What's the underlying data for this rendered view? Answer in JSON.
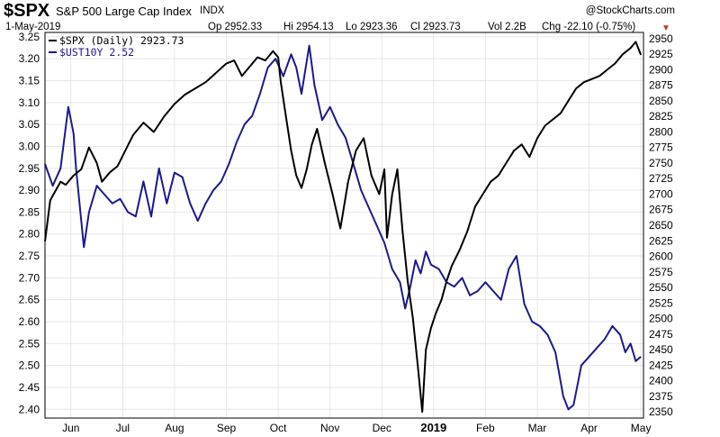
{
  "header": {
    "symbol": "$SPX",
    "title": "S&P 500 Large Cap Index",
    "exchange": "INDX",
    "date": "1-May-2019",
    "open": "Op 2952.33",
    "high": "Hi 2954.13",
    "low": "Lo 2923.36",
    "close": "Cl 2923.73",
    "volume": "Vol 2.2B",
    "change": "Chg -22.10 (-0.75%)",
    "watermark": "@StockCharts.com"
  },
  "colors": {
    "spx": "#000000",
    "ust": "#1a1a8c",
    "down_arrow": "#c0392b",
    "grid": "#e6e6e6",
    "frame": "#000000"
  },
  "chart_data": {
    "type": "line",
    "legend": [
      {
        "text": "$SPX (Daily) 2923.73",
        "color": "#000000"
      },
      {
        "text": "$UST10Y 2.52",
        "color": "#1a1a8c"
      }
    ],
    "legend_placement": "top-left",
    "left_axis": {
      "label": "",
      "ylim": [
        2.38,
        3.26
      ],
      "ticks": [
        2.4,
        2.45,
        2.5,
        2.55,
        2.6,
        2.65,
        2.7,
        2.75,
        2.8,
        2.85,
        2.9,
        2.95,
        3.0,
        3.05,
        3.1,
        3.15,
        3.2,
        3.25
      ]
    },
    "right_axis": {
      "label": "",
      "ylim": [
        2340,
        2960
      ],
      "ticks": [
        2350,
        2375,
        2400,
        2425,
        2450,
        2475,
        2500,
        2525,
        2550,
        2575,
        2600,
        2625,
        2650,
        2675,
        2700,
        2725,
        2750,
        2775,
        2800,
        2825,
        2850,
        2875,
        2900,
        2925,
        2950
      ]
    },
    "x_labels": [
      {
        "text": "Jun",
        "t": 0.5
      },
      {
        "text": "Jul",
        "t": 1.5
      },
      {
        "text": "Aug",
        "t": 2.5
      },
      {
        "text": "Sep",
        "t": 3.5
      },
      {
        "text": "Oct",
        "t": 4.5
      },
      {
        "text": "Nov",
        "t": 5.5
      },
      {
        "text": "Dec",
        "t": 6.5
      },
      {
        "text": "2019",
        "t": 7.5,
        "bold": true
      },
      {
        "text": "Feb",
        "t": 8.5
      },
      {
        "text": "Mar",
        "t": 9.5
      },
      {
        "text": "Apr",
        "t": 10.5
      },
      {
        "text": "May",
        "t": 11.5
      }
    ],
    "x_range": [
      0.0,
      11.55
    ],
    "grid": true,
    "series": [
      {
        "name": "$SPX (Daily)",
        "axis": "right",
        "points": [
          [
            0.0,
            2624
          ],
          [
            0.1,
            2690
          ],
          [
            0.2,
            2705
          ],
          [
            0.3,
            2720
          ],
          [
            0.4,
            2715
          ],
          [
            0.55,
            2730
          ],
          [
            0.7,
            2740
          ],
          [
            0.85,
            2775
          ],
          [
            1.0,
            2750
          ],
          [
            1.1,
            2720
          ],
          [
            1.25,
            2735
          ],
          [
            1.4,
            2745
          ],
          [
            1.55,
            2770
          ],
          [
            1.7,
            2795
          ],
          [
            1.9,
            2815
          ],
          [
            2.1,
            2800
          ],
          [
            2.3,
            2825
          ],
          [
            2.5,
            2845
          ],
          [
            2.7,
            2860
          ],
          [
            2.9,
            2870
          ],
          [
            3.1,
            2880
          ],
          [
            3.3,
            2895
          ],
          [
            3.5,
            2910
          ],
          [
            3.65,
            2915
          ],
          [
            3.8,
            2890
          ],
          [
            3.95,
            2905
          ],
          [
            4.1,
            2920
          ],
          [
            4.25,
            2915
          ],
          [
            4.4,
            2930
          ],
          [
            4.5,
            2920
          ],
          [
            4.55,
            2880
          ],
          [
            4.65,
            2825
          ],
          [
            4.75,
            2770
          ],
          [
            4.85,
            2730
          ],
          [
            4.95,
            2710
          ],
          [
            5.05,
            2740
          ],
          [
            5.15,
            2780
          ],
          [
            5.25,
            2805
          ],
          [
            5.4,
            2750
          ],
          [
            5.55,
            2700
          ],
          [
            5.7,
            2645
          ],
          [
            5.85,
            2720
          ],
          [
            6.0,
            2770
          ],
          [
            6.15,
            2790
          ],
          [
            6.3,
            2730
          ],
          [
            6.45,
            2700
          ],
          [
            6.55,
            2740
          ],
          [
            6.6,
            2630
          ],
          [
            6.7,
            2700
          ],
          [
            6.8,
            2740
          ],
          [
            6.9,
            2640
          ],
          [
            7.0,
            2560
          ],
          [
            7.1,
            2500
          ],
          [
            7.2,
            2420
          ],
          [
            7.28,
            2350
          ],
          [
            7.35,
            2450
          ],
          [
            7.45,
            2485
          ],
          [
            7.55,
            2510
          ],
          [
            7.65,
            2530
          ],
          [
            7.75,
            2560
          ],
          [
            7.85,
            2585
          ],
          [
            8.0,
            2610
          ],
          [
            8.15,
            2640
          ],
          [
            8.3,
            2680
          ],
          [
            8.45,
            2700
          ],
          [
            8.6,
            2720
          ],
          [
            8.75,
            2730
          ],
          [
            8.9,
            2750
          ],
          [
            9.05,
            2770
          ],
          [
            9.2,
            2780
          ],
          [
            9.35,
            2760
          ],
          [
            9.5,
            2790
          ],
          [
            9.65,
            2810
          ],
          [
            9.8,
            2820
          ],
          [
            9.95,
            2830
          ],
          [
            10.1,
            2850
          ],
          [
            10.25,
            2870
          ],
          [
            10.4,
            2880
          ],
          [
            10.55,
            2885
          ],
          [
            10.7,
            2890
          ],
          [
            10.85,
            2900
          ],
          [
            11.0,
            2910
          ],
          [
            11.15,
            2925
          ],
          [
            11.3,
            2935
          ],
          [
            11.4,
            2945
          ],
          [
            11.5,
            2924
          ]
        ]
      },
      {
        "name": "$UST10Y",
        "axis": "left",
        "points": [
          [
            0.0,
            2.96
          ],
          [
            0.15,
            2.91
          ],
          [
            0.3,
            2.95
          ],
          [
            0.45,
            3.09
          ],
          [
            0.55,
            3.03
          ],
          [
            0.6,
            2.95
          ],
          [
            0.75,
            2.77
          ],
          [
            0.85,
            2.85
          ],
          [
            1.0,
            2.91
          ],
          [
            1.15,
            2.89
          ],
          [
            1.3,
            2.87
          ],
          [
            1.45,
            2.88
          ],
          [
            1.6,
            2.85
          ],
          [
            1.75,
            2.84
          ],
          [
            1.9,
            2.92
          ],
          [
            2.05,
            2.84
          ],
          [
            2.2,
            2.95
          ],
          [
            2.35,
            2.87
          ],
          [
            2.5,
            2.94
          ],
          [
            2.65,
            2.93
          ],
          [
            2.8,
            2.87
          ],
          [
            2.95,
            2.83
          ],
          [
            3.1,
            2.87
          ],
          [
            3.25,
            2.9
          ],
          [
            3.4,
            2.92
          ],
          [
            3.55,
            2.96
          ],
          [
            3.7,
            3.01
          ],
          [
            3.85,
            3.05
          ],
          [
            4.0,
            3.07
          ],
          [
            4.15,
            3.12
          ],
          [
            4.3,
            3.18
          ],
          [
            4.45,
            3.2
          ],
          [
            4.6,
            3.16
          ],
          [
            4.75,
            3.21
          ],
          [
            4.85,
            3.18
          ],
          [
            4.95,
            3.12
          ],
          [
            5.1,
            3.23
          ],
          [
            5.2,
            3.14
          ],
          [
            5.35,
            3.06
          ],
          [
            5.5,
            3.09
          ],
          [
            5.65,
            3.05
          ],
          [
            5.8,
            3.02
          ],
          [
            5.95,
            2.96
          ],
          [
            6.1,
            2.9
          ],
          [
            6.25,
            2.86
          ],
          [
            6.4,
            2.82
          ],
          [
            6.55,
            2.78
          ],
          [
            6.7,
            2.72
          ],
          [
            6.85,
            2.69
          ],
          [
            6.95,
            2.63
          ],
          [
            7.05,
            2.68
          ],
          [
            7.15,
            2.74
          ],
          [
            7.25,
            2.71
          ],
          [
            7.35,
            2.76
          ],
          [
            7.45,
            2.73
          ],
          [
            7.6,
            2.72
          ],
          [
            7.75,
            2.69
          ],
          [
            7.9,
            2.68
          ],
          [
            8.05,
            2.7
          ],
          [
            8.2,
            2.66
          ],
          [
            8.35,
            2.67
          ],
          [
            8.5,
            2.69
          ],
          [
            8.65,
            2.67
          ],
          [
            8.8,
            2.65
          ],
          [
            8.95,
            2.72
          ],
          [
            9.1,
            2.75
          ],
          [
            9.25,
            2.64
          ],
          [
            9.4,
            2.6
          ],
          [
            9.55,
            2.59
          ],
          [
            9.7,
            2.57
          ],
          [
            9.85,
            2.53
          ],
          [
            10.0,
            2.43
          ],
          [
            10.1,
            2.4
          ],
          [
            10.2,
            2.41
          ],
          [
            10.35,
            2.5
          ],
          [
            10.5,
            2.52
          ],
          [
            10.65,
            2.54
          ],
          [
            10.8,
            2.56
          ],
          [
            10.95,
            2.59
          ],
          [
            11.1,
            2.57
          ],
          [
            11.2,
            2.53
          ],
          [
            11.3,
            2.55
          ],
          [
            11.4,
            2.51
          ],
          [
            11.5,
            2.52
          ]
        ]
      }
    ]
  }
}
